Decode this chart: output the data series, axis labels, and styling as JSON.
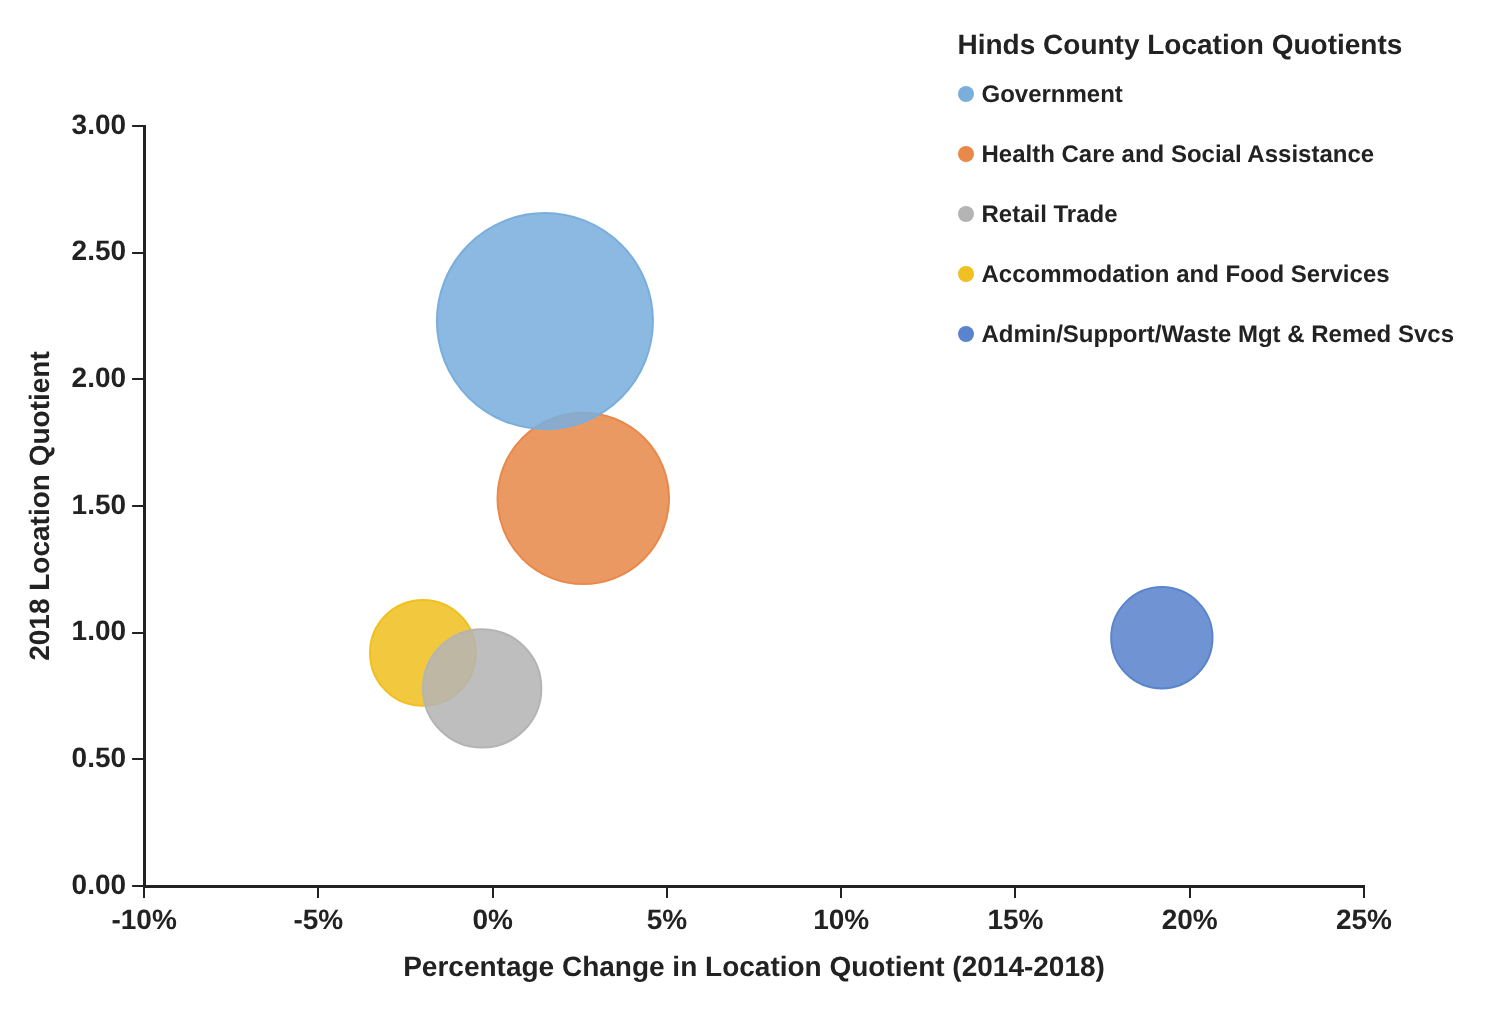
{
  "chart_data": {
    "type": "bubble",
    "legend_title": "Hinds County Location Quotients",
    "xlabel": "Percentage Change in Location Quotient (2014-2018)",
    "ylabel": "2018 Location Quotient",
    "series": [
      {
        "name": "Government",
        "color": "#7aaedc",
        "x": [
          1.5
        ],
        "values": [
          2.23
        ],
        "sizes": [
          1
        ]
      },
      {
        "name": "Health Care and Social Assistance",
        "color": "#e8894a",
        "x": [
          2.6
        ],
        "values": [
          1.53
        ],
        "sizes": [
          0.63
        ]
      },
      {
        "name": "Retail Trade",
        "color": "#b4b4b4",
        "x": [
          -0.3
        ],
        "values": [
          0.78
        ],
        "sizes": [
          0.3
        ]
      },
      {
        "name": "Accommodation and Food Services",
        "color": "#f0c020",
        "x": [
          -2
        ],
        "values": [
          0.92
        ],
        "sizes": [
          0.24
        ]
      },
      {
        "name": "Admin/Support/Waste Mgt & Remed Svcs",
        "color": "#5a84cc",
        "x": [
          19.2
        ],
        "values": [
          0.98
        ],
        "sizes": [
          0.22
        ]
      }
    ],
    "xlim": [
      -10,
      25
    ],
    "xticks": [
      {
        "value": -10,
        "label": "-10%"
      },
      {
        "value": -5,
        "label": "-5%"
      },
      {
        "value": 0,
        "label": "0%"
      },
      {
        "value": 5,
        "label": "5%"
      },
      {
        "value": 10,
        "label": "10%"
      },
      {
        "value": 15,
        "label": "15%"
      },
      {
        "value": 20,
        "label": "20%"
      },
      {
        "value": 25,
        "label": "25%"
      }
    ],
    "ylim": [
      0,
      3
    ],
    "yticks": [
      {
        "value": 0,
        "label": "0.00"
      },
      {
        "value": 0.5,
        "label": "0.50"
      },
      {
        "value": 1,
        "label": "1.00"
      },
      {
        "value": 1.5,
        "label": "1.50"
      },
      {
        "value": 2,
        "label": "2.00"
      },
      {
        "value": 2.5,
        "label": "2.50"
      },
      {
        "value": 3,
        "label": "3.00"
      }
    ],
    "grid": false,
    "legend": "top right"
  }
}
